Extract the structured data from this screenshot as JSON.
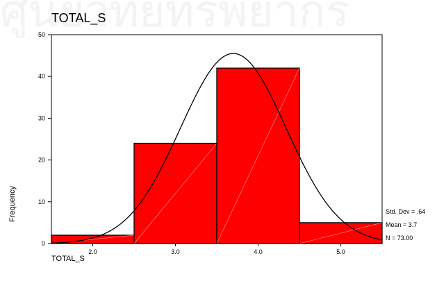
{
  "chart_data": {
    "type": "bar",
    "title": "TOTAL_S",
    "xlabel": "TOTAL_S",
    "ylabel": "Frequency",
    "bins": [
      {
        "label": "2.0",
        "center": 2.0,
        "count": 2
      },
      {
        "label": "3.0",
        "center": 3.0,
        "count": 24
      },
      {
        "label": "4.0",
        "center": 4.0,
        "count": 42
      },
      {
        "label": "5.0",
        "center": 5.0,
        "count": 5
      }
    ],
    "bin_width": 1.0,
    "xlim": [
      1.5,
      5.5
    ],
    "ylim": [
      0,
      50
    ],
    "yticks": [
      0,
      10,
      20,
      30,
      40,
      50
    ],
    "normal_curve": {
      "mean": 3.7,
      "std_dev": 0.64,
      "n": 73
    },
    "stats": {
      "std_dev": "Std. Dev = .64",
      "mean": "Mean = 3.7",
      "n": "N = 73.00"
    },
    "bar_color": "#ff0000",
    "grid": false
  }
}
